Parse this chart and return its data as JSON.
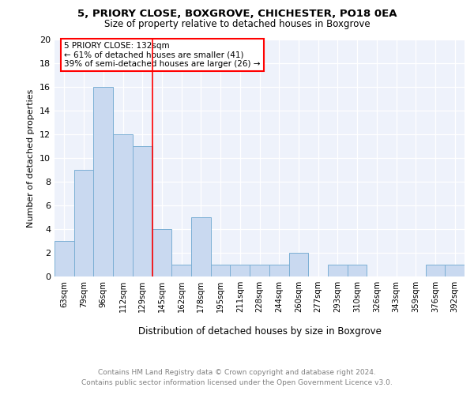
{
  "title1": "5, PRIORY CLOSE, BOXGROVE, CHICHESTER, PO18 0EA",
  "title2": "Size of property relative to detached houses in Boxgrove",
  "xlabel": "Distribution of detached houses by size in Boxgrove",
  "ylabel": "Number of detached properties",
  "categories": [
    "63sqm",
    "79sqm",
    "96sqm",
    "112sqm",
    "129sqm",
    "145sqm",
    "162sqm",
    "178sqm",
    "195sqm",
    "211sqm",
    "228sqm",
    "244sqm",
    "260sqm",
    "277sqm",
    "293sqm",
    "310sqm",
    "326sqm",
    "343sqm",
    "359sqm",
    "376sqm",
    "392sqm"
  ],
  "values": [
    3,
    9,
    16,
    12,
    11,
    4,
    1,
    5,
    1,
    1,
    1,
    1,
    2,
    0,
    1,
    1,
    0,
    0,
    0,
    1,
    1
  ],
  "bar_color": "#c9d9f0",
  "bar_edge_color": "#7bafd4",
  "annotation_box_text": "5 PRIORY CLOSE: 132sqm\n← 61% of detached houses are smaller (41)\n39% of semi-detached houses are larger (26) →",
  "annotation_box_color": "red",
  "red_line_x": 4.5,
  "ylim": [
    0,
    20
  ],
  "yticks": [
    0,
    2,
    4,
    6,
    8,
    10,
    12,
    14,
    16,
    18,
    20
  ],
  "footer_text": "Contains HM Land Registry data © Crown copyright and database right 2024.\nContains public sector information licensed under the Open Government Licence v3.0.",
  "background_color": "#eef2fb"
}
